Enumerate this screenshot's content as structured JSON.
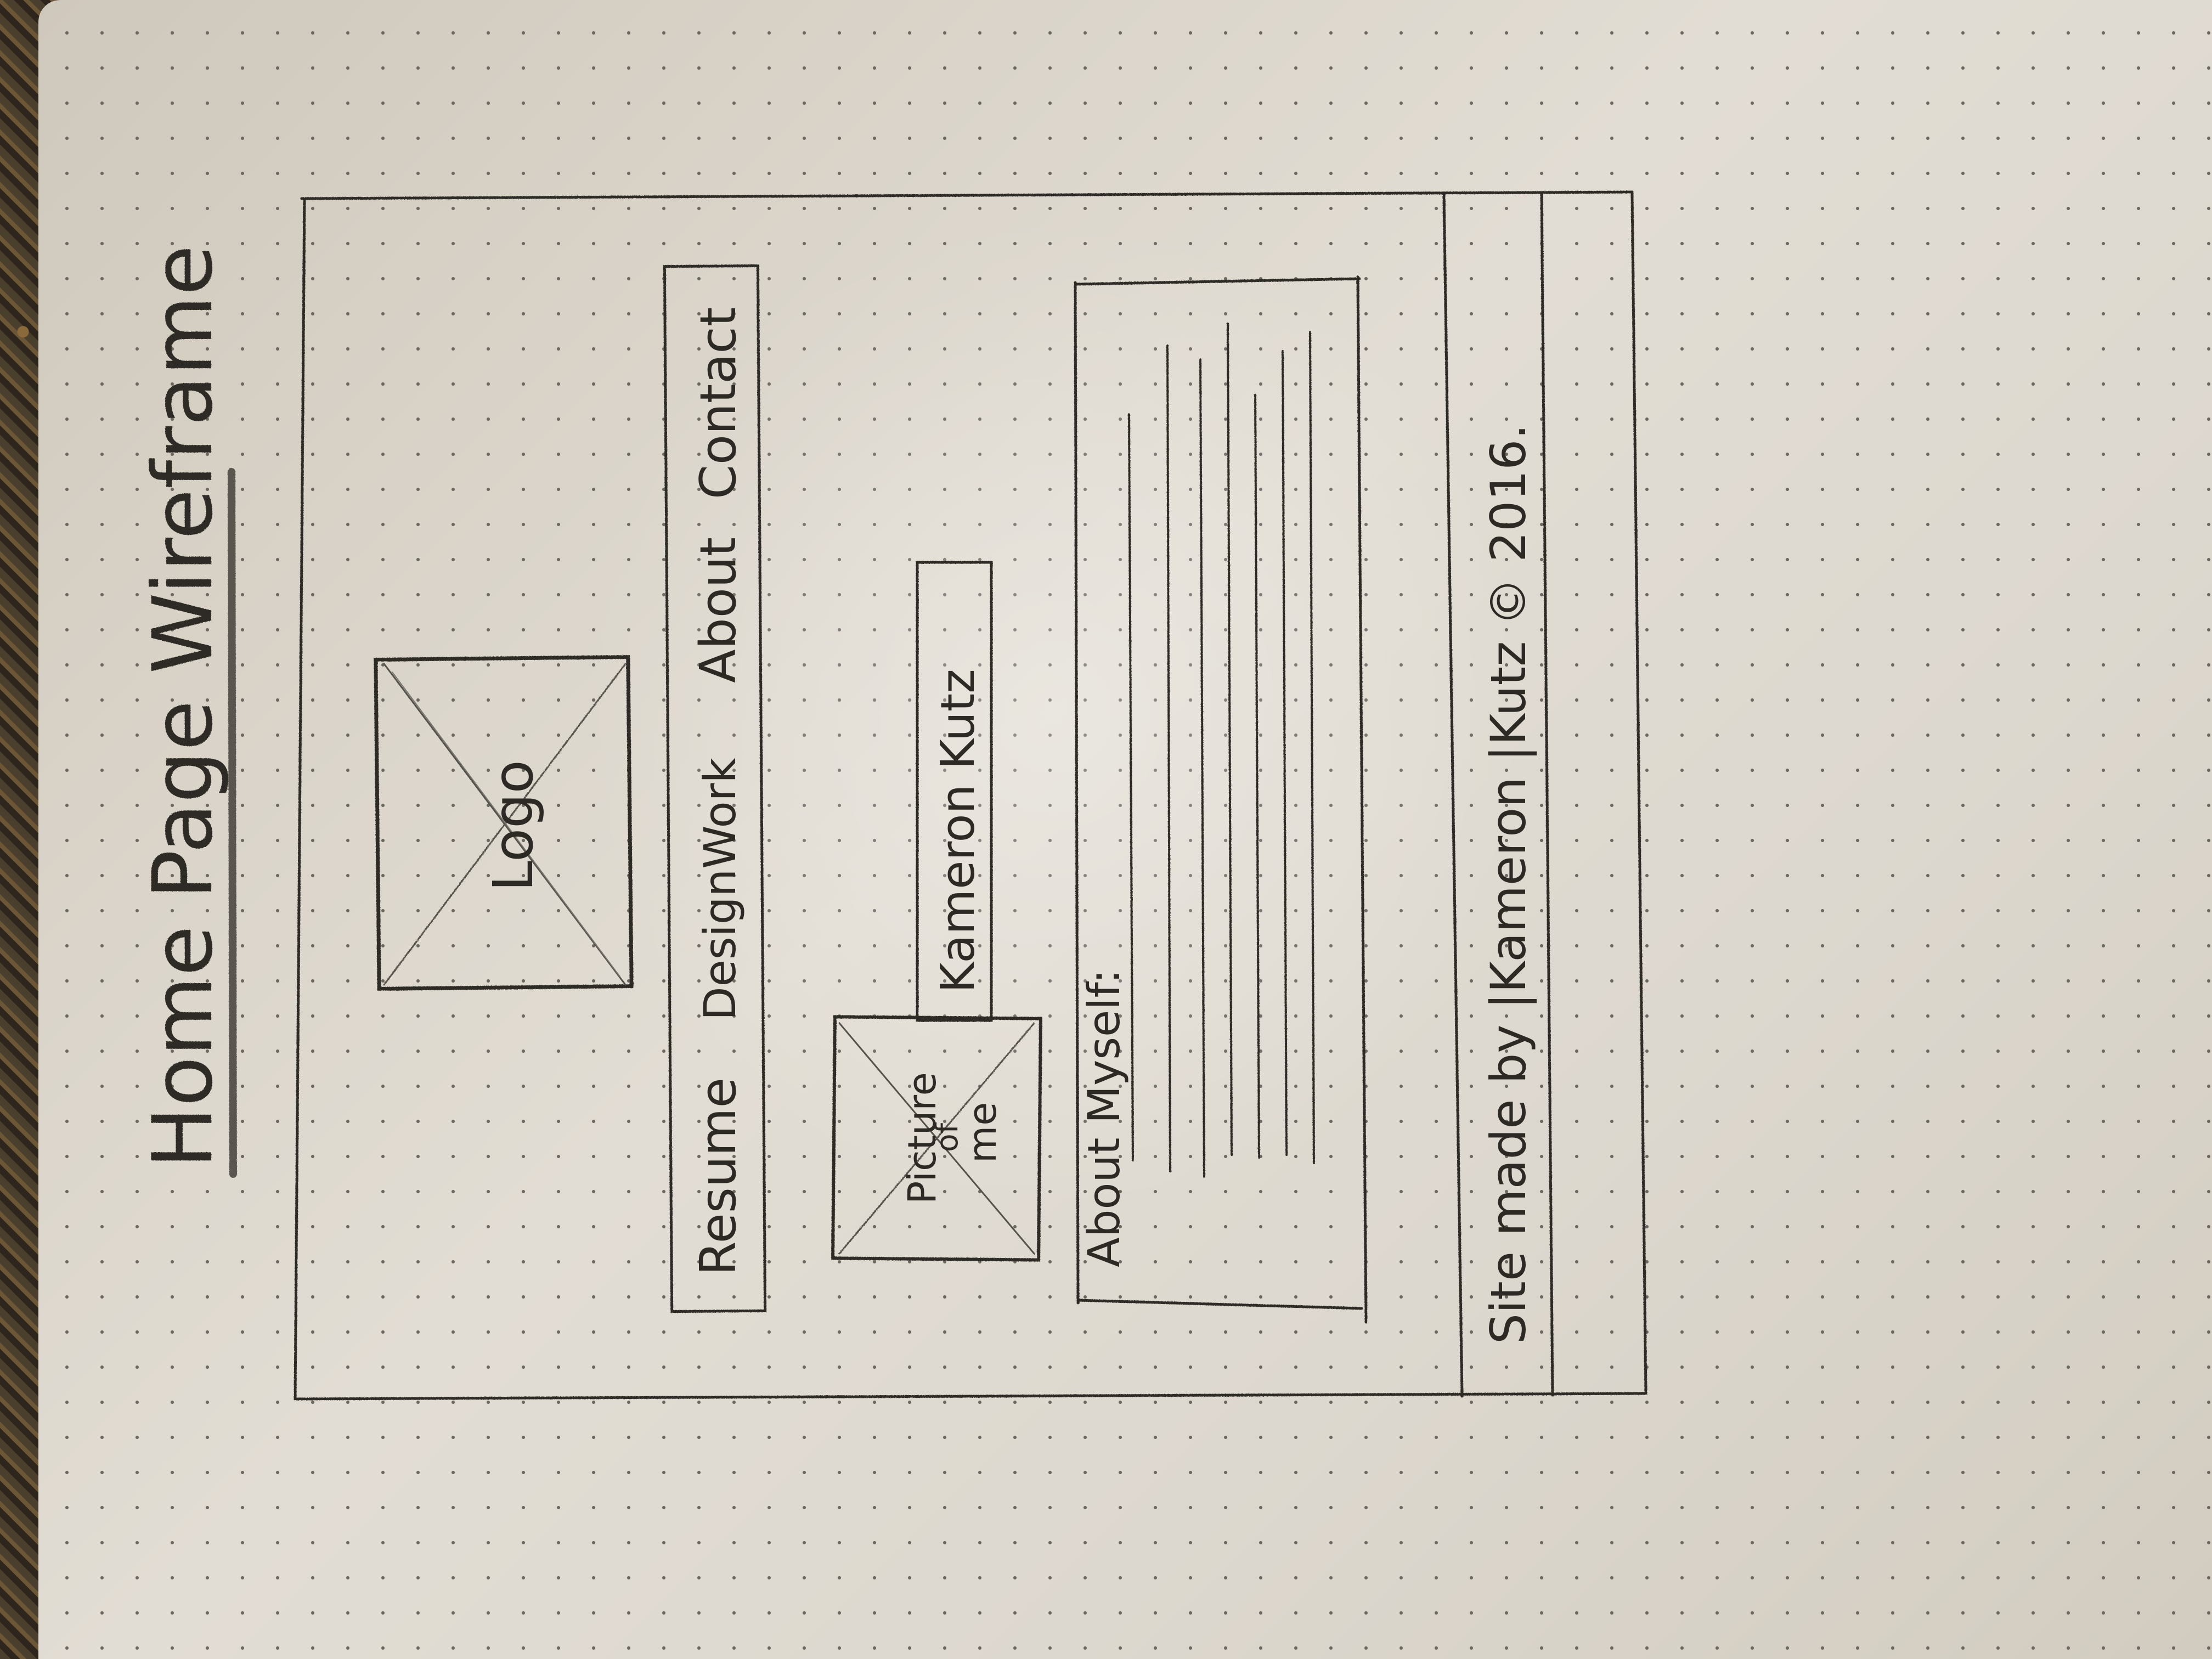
{
  "title": "Home Page Wireframe",
  "logo": {
    "label": "Logo"
  },
  "nav": {
    "items": [
      "Resume",
      "DesignWork",
      "About",
      "Contact"
    ]
  },
  "profile": {
    "picture_label_line1": "Picture",
    "picture_label_line2": "of",
    "picture_label_line3": "me",
    "name": "Kameron Kutz"
  },
  "about": {
    "heading": "About Myself:"
  },
  "footer": {
    "credit": "Site made by |Kameron |Kutz © 2016."
  },
  "colors": {
    "paper": "#dad4c9",
    "pencil": "#2d2a26",
    "dot": "#6b6660",
    "counter": "#3a3228"
  }
}
